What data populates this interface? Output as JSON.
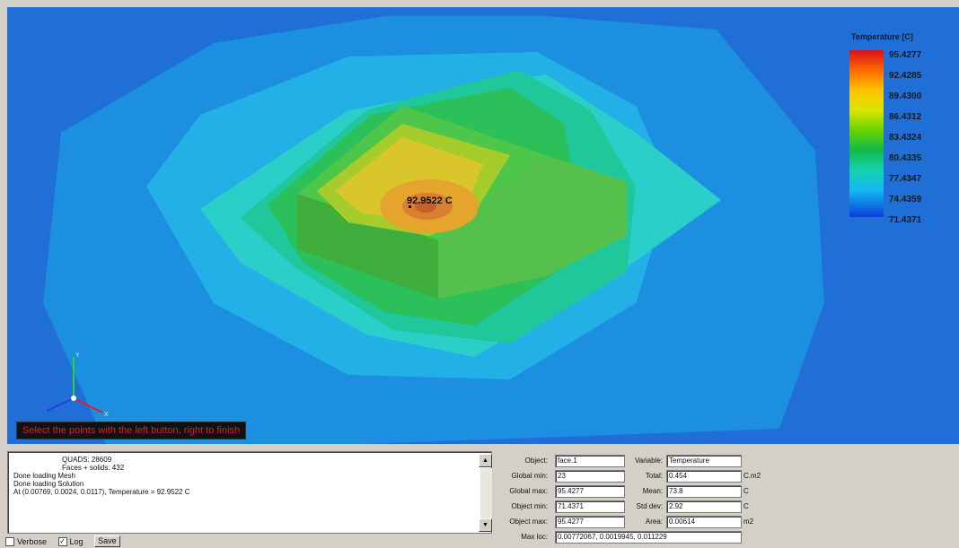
{
  "viewport": {
    "legend": {
      "title": "Temperature [C]",
      "values": [
        "95.4277",
        "92.4285",
        "89.4300",
        "86.4312",
        "83.4324",
        "80.4335",
        "77.4347",
        "74.4359",
        "71.4371"
      ],
      "colors": [
        "#d9101a",
        "#ff6a00",
        "#ffc200",
        "#d9e600",
        "#6ad400",
        "#10b84a",
        "#15d3b0",
        "#14b8f0",
        "#0a3fd9"
      ]
    },
    "probe_label": "92.9522 C",
    "axis_labels": {
      "y": "Y",
      "x": "X"
    },
    "status_message": "Select the points with the left button, right to finish"
  },
  "log": {
    "lines": [
      "QUADS: 28609",
      "Faces + solids: 432",
      "Done loading Mesh",
      "Done loading Solution",
      "At (0.00769, 0.0024, 0.0117), Temperature = 92.9522 C"
    ]
  },
  "options": {
    "verbose_label": "Verbose",
    "verbose_checked": false,
    "log_label": "Log",
    "log_checked": true,
    "save_label": "Save"
  },
  "stats": {
    "object_label": "Object:",
    "object_value": "face.1",
    "variable_label": "Variable:",
    "variable_value": "Temperature",
    "global_min_label": "Global min:",
    "global_min_value": "23",
    "total_label": "Total:",
    "total_value": "0.454",
    "total_unit": "C.m2",
    "global_max_label": "Global max:",
    "global_max_value": "95.4277",
    "mean_label": "Mean:",
    "mean_value": "73.8",
    "mean_unit": "C",
    "object_min_label": "Object min:",
    "object_min_value": "71.4371",
    "std_dev_label": "Std dev:",
    "std_dev_value": "2.92",
    "std_dev_unit": "C",
    "object_max_label": "Object max:",
    "object_max_value": "95.4277",
    "area_label": "Area:",
    "area_value": "0.00614",
    "area_unit": "m2",
    "max_loc_label": "Max loc:",
    "max_loc_value": "0.00772067, 0.0019945, 0.011229"
  },
  "colors": {
    "background_blue": "#1f6fd6",
    "status_text": "#d9212c"
  }
}
